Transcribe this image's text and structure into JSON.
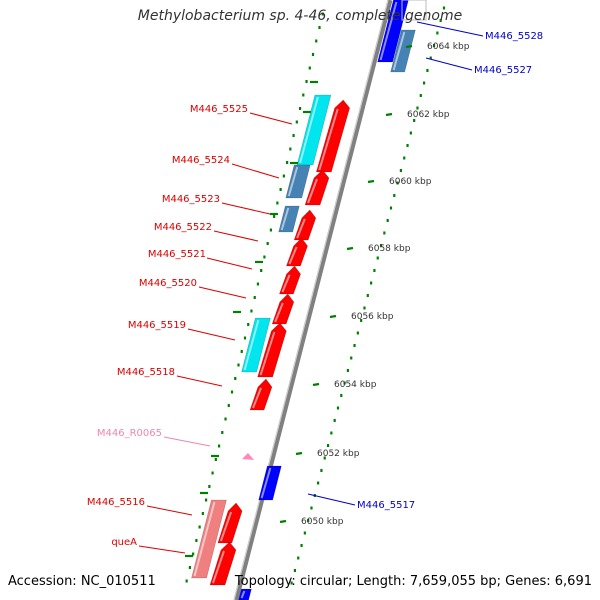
{
  "title": "Methylobacterium sp. 4-46, complete genome",
  "footer": {
    "accession": "Accession: NC_010511",
    "summary": "Topology: circular; Length: 7,659,055 bp; Genes: 6,691"
  },
  "ticks": [
    {
      "label": "6064 kbp"
    },
    {
      "label": "6062 kbp"
    },
    {
      "label": "6060 kbp"
    },
    {
      "label": "6058 kbp"
    },
    {
      "label": "6056 kbp"
    },
    {
      "label": "6054 kbp"
    },
    {
      "label": "6052 kbp"
    },
    {
      "label": "6050 kbp"
    }
  ],
  "genes_left": [
    {
      "label": "M446_5525",
      "color": "#dd0000"
    },
    {
      "label": "M446_5524",
      "color": "#dd0000"
    },
    {
      "label": "M446_5523",
      "color": "#dd0000"
    },
    {
      "label": "M446_5522",
      "color": "#dd0000"
    },
    {
      "label": "M446_5521",
      "color": "#dd0000"
    },
    {
      "label": "M446_5520",
      "color": "#dd0000"
    },
    {
      "label": "M446_5519",
      "color": "#dd0000"
    },
    {
      "label": "M446_5518",
      "color": "#dd0000"
    },
    {
      "label": "M446_R0065",
      "color": "#ee88aa"
    },
    {
      "label": "M446_5516",
      "color": "#dd0000"
    },
    {
      "label": "queA",
      "color": "#dd0000"
    }
  ],
  "genes_right": [
    {
      "label": "M446_5528",
      "color": "#0000cc"
    },
    {
      "label": "M446_5527",
      "color": "#0000cc"
    },
    {
      "label": "M446_5517",
      "color": "#0000cc"
    }
  ],
  "colors": {
    "backbone": "#808080",
    "forward_cds": "#ff0000",
    "reverse_cds": "#0000ff",
    "orf_light": "#00e5ee",
    "orf_dark": "#4682b4",
    "rna": "#ff88bb",
    "pink_orf": "#f08080",
    "tick_mark": "#008000"
  }
}
